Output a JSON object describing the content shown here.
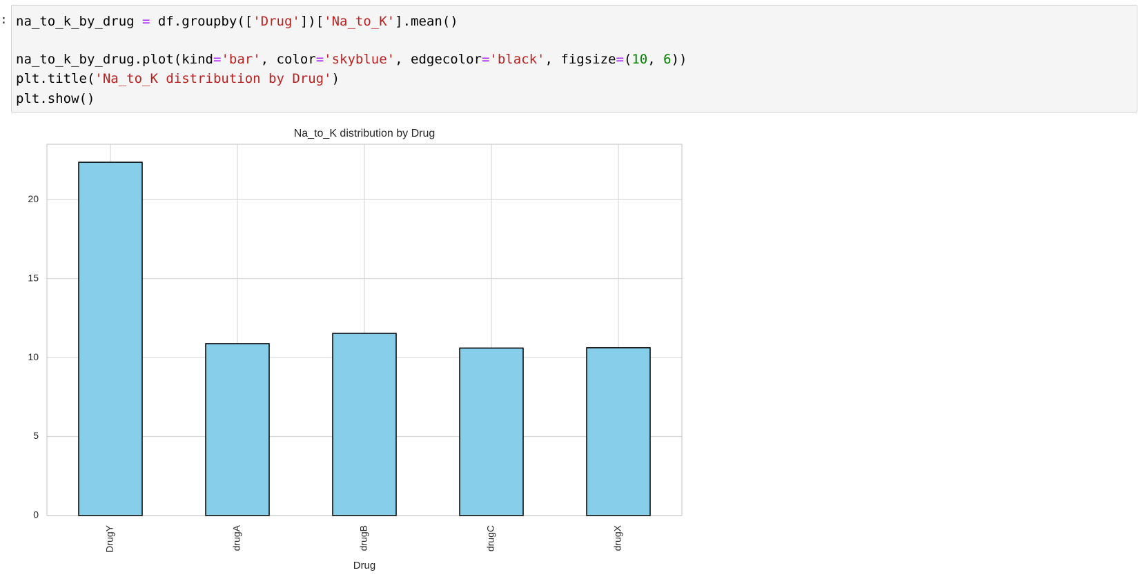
{
  "prompt": ":",
  "code": {
    "lines": [
      [
        "na_to_k_by_drug ",
        "=",
        " df.groupby([",
        "'Drug'",
        "])[",
        "'Na_to_K'",
        "].mean()"
      ],
      [
        "na_to_k_by_drug.plot(kind",
        "=",
        "'bar'",
        ", color",
        "=",
        "'skyblue'",
        ", edgecolor",
        "=",
        "'black'",
        ", figsize",
        "=",
        "(",
        "10",
        ", ",
        "6",
        "))"
      ],
      [
        "plt.title(",
        "'Na_to_K distribution by Drug'",
        ")"
      ],
      [
        "plt.show()"
      ]
    ]
  },
  "chart_data": {
    "type": "bar",
    "title": "Na_to_K distribution by Drug",
    "x_label": "Drug",
    "categories": [
      "DrugY",
      "drugA",
      "drugB",
      "drugC",
      "drugX"
    ],
    "values": [
      22.36,
      10.88,
      11.53,
      10.6,
      10.62
    ],
    "color": "#87ceeb",
    "edgecolor": "#000000",
    "ylim": [
      0,
      23.5
    ],
    "yticks": [
      0,
      5,
      10,
      15,
      20
    ],
    "grid": true
  }
}
